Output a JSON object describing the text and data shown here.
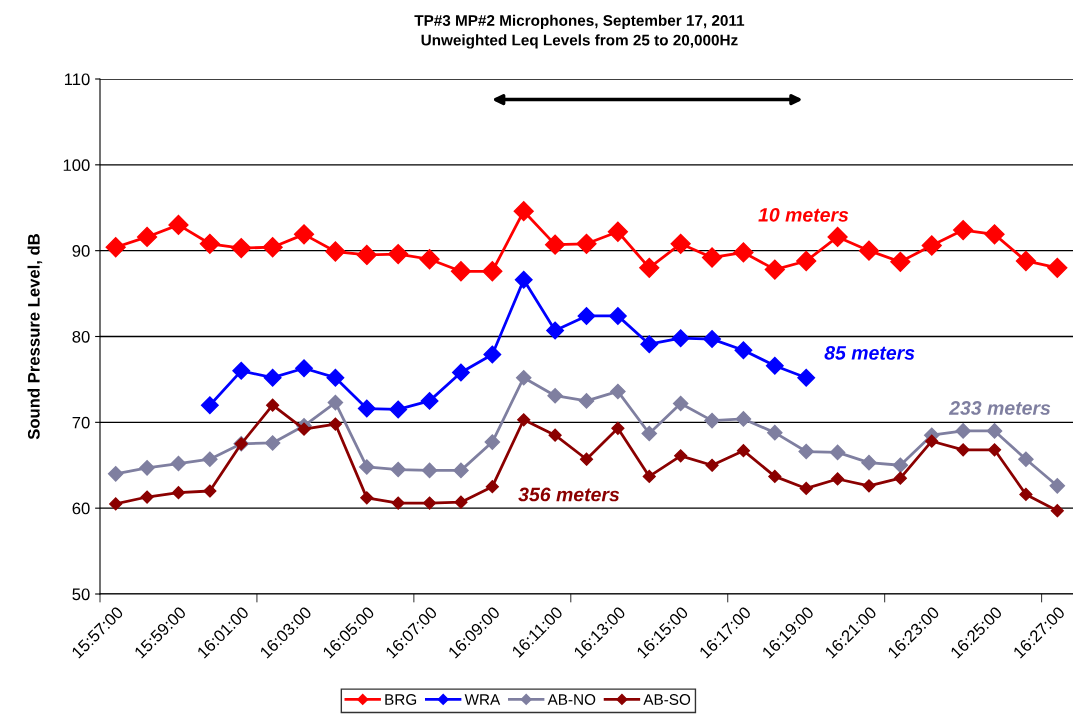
{
  "chart_data": {
    "type": "line",
    "title": "TP#3 MP#2 Microphones, September 17, 2011",
    "subtitle": "Unweighted Leq Levels from 25 to 20,000Hz",
    "ylabel": "Sound Pressure Level, dB",
    "categories": [
      "15:57:00",
      null,
      "15:59:00",
      null,
      "16:01:00",
      null,
      "16:03:00",
      null,
      "16:05:00",
      null,
      "16:07:00",
      null,
      "16:09:00",
      null,
      "16:11:00",
      null,
      "16:13:00",
      null,
      "16:15:00",
      null,
      "16:17:00",
      null,
      "16:19:00",
      null,
      "16:21:00",
      null,
      "16:23:00",
      null,
      "16:25:00",
      null,
      "16:27:00"
    ],
    "series": [
      {
        "name": "BRG",
        "color": "#ff0000",
        "values": [
          90.4,
          91.6,
          93.0,
          90.8,
          90.3,
          90.4,
          91.9,
          89.9,
          89.5,
          89.6,
          89.0,
          87.6,
          87.6,
          94.6,
          90.7,
          90.8,
          92.2,
          88.0,
          90.8,
          89.2,
          89.8,
          87.8,
          88.8,
          91.6,
          90.0,
          88.7,
          90.6,
          92.4,
          91.9,
          88.8,
          88.0
        ]
      },
      {
        "name": "WRA",
        "color": "#0000ff",
        "values": [
          null,
          null,
          null,
          72.0,
          76.0,
          75.2,
          76.3,
          75.2,
          71.6,
          71.5,
          72.5,
          75.8,
          77.9,
          86.6,
          80.7,
          82.4,
          82.4,
          79.1,
          79.8,
          79.7,
          78.4,
          76.6,
          75.2,
          null,
          null,
          null,
          null,
          null,
          null,
          null,
          null
        ]
      },
      {
        "name": "AB-NO",
        "color": "#7f7fa0",
        "values": [
          64.0,
          64.7,
          65.2,
          65.7,
          67.5,
          67.6,
          69.6,
          72.3,
          64.8,
          64.5,
          64.4,
          64.4,
          67.7,
          75.2,
          73.1,
          72.5,
          73.6,
          68.7,
          72.2,
          70.2,
          70.4,
          68.8,
          66.6,
          66.5,
          65.3,
          65.0,
          68.5,
          69.0,
          69.0,
          65.7,
          62.6
        ]
      },
      {
        "name": "AB-SO",
        "color": "#8b0000",
        "values": [
          60.5,
          61.3,
          61.8,
          62.0,
          67.5,
          72.0,
          69.2,
          69.8,
          61.2,
          60.6,
          60.6,
          60.7,
          62.5,
          70.3,
          68.5,
          65.7,
          69.3,
          63.7,
          66.1,
          65.0,
          66.7,
          63.7,
          62.3,
          63.4,
          62.6,
          63.5,
          67.8,
          66.8,
          66.8,
          61.6,
          59.7
        ]
      }
    ],
    "annotations": [
      "10 meters",
      "85 meters",
      "233 meters",
      "356 meters"
    ],
    "ylim": [
      50,
      110
    ],
    "yticks": [
      50,
      60,
      70,
      80,
      90,
      100,
      110
    ],
    "grid": "y",
    "legend": "bottom",
    "marker": "diamond",
    "line_style": "solid"
  }
}
